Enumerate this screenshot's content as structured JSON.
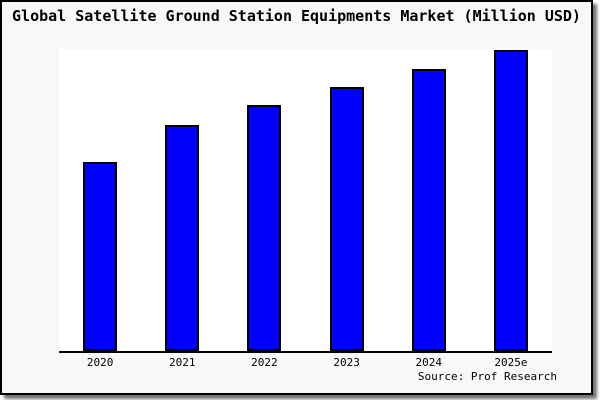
{
  "title": "Global Satellite Ground Station Equipments Market (Million USD)",
  "source_note": "Source: Prof Research",
  "colors": {
    "bar_fill": "#0000ff",
    "bar_border": "#000000",
    "axis": "#000000",
    "frame_border": "#000000",
    "surface": "#f8f8f8",
    "plot_background": "#ffffff"
  },
  "chart_data": {
    "type": "bar",
    "title": "Global Satellite Ground Station Equipments Market (Million USD)",
    "categories": [
      "2020",
      "2021",
      "2022",
      "2023",
      "2024",
      "2025e"
    ],
    "values": [
      62.8,
      75.1,
      81.7,
      87.7,
      93.7,
      100
    ],
    "values_unit": "relative height, % of 2025e bar (no y-axis scale shown)",
    "xlabel": "",
    "ylabel": "",
    "ylim": [
      0,
      100
    ],
    "grid": false,
    "legend": false,
    "annotations": [
      "Source: Prof Research"
    ]
  }
}
